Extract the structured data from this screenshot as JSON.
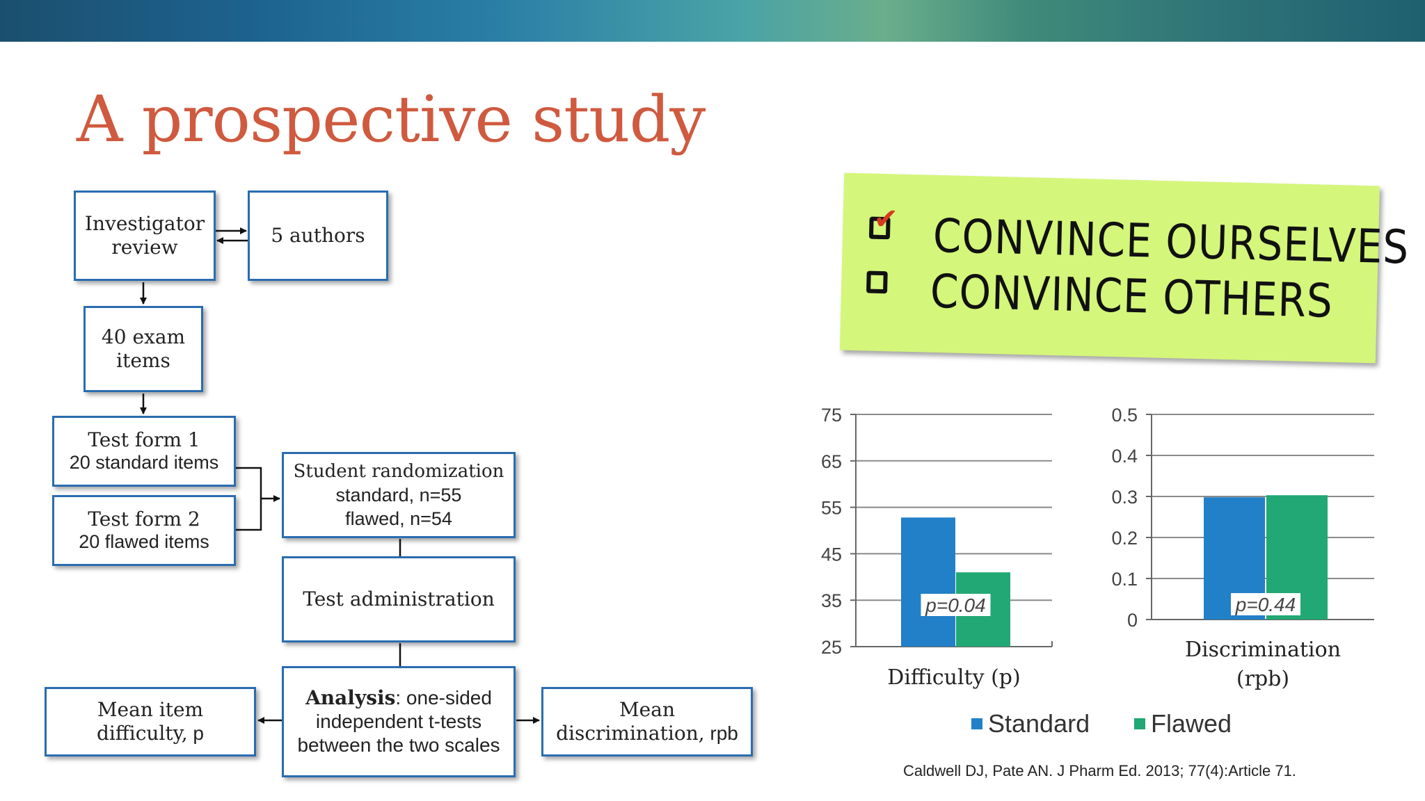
{
  "title": "A prospective study",
  "flow": {
    "investigator": [
      "Investigator",
      "review"
    ],
    "authors": "5 authors",
    "exam_items": [
      "40 exam",
      "items"
    ],
    "form1": {
      "title": "Test form 1",
      "sub": "20 standard items"
    },
    "form2": {
      "title": "Test form 2",
      "sub": "20 flawed items"
    },
    "randomization": {
      "title": "Student randomization",
      "line1": "standard, n=55",
      "line2": "flawed, n=54"
    },
    "administration": "Test administration",
    "analysis": {
      "bold": "Analysis",
      "rest": ": one-sided",
      "line2": "independent t-tests",
      "line3": "between the two scales"
    },
    "mean_difficulty": {
      "line1": "Mean item",
      "line2": "difficulty,",
      "symbol": "p"
    },
    "mean_discrimination": {
      "line1": "Mean",
      "line2": "discrimination,",
      "symbol": "rpb"
    }
  },
  "note": {
    "items": [
      {
        "text": "CONVINCE OURSELVES",
        "checked": true
      },
      {
        "text": "CONVINCE OTHERS",
        "checked": false
      }
    ]
  },
  "chart_data": [
    {
      "type": "bar",
      "categories": [
        "Difficulty (p)"
      ],
      "xlabel": "Difficulty (p)",
      "ylim": [
        25,
        75
      ],
      "yticks": [
        25,
        35,
        45,
        55,
        65,
        75
      ],
      "series": [
        {
          "name": "Standard",
          "values": [
            52.8
          ]
        },
        {
          "name": "Flawed",
          "values": [
            41
          ]
        }
      ],
      "annotation": "p=0.04",
      "grid": true
    },
    {
      "type": "bar",
      "categories": [
        "Discrimination (rpb)"
      ],
      "xlabel": [
        "Discrimination",
        "(rpb)"
      ],
      "ylim": [
        0,
        0.5
      ],
      "yticks": [
        "0",
        "0.1",
        "0.2",
        "0.3",
        "0.4",
        "0.5"
      ],
      "series": [
        {
          "name": "Standard",
          "values": [
            0.298
          ]
        },
        {
          "name": "Flawed",
          "values": [
            0.303
          ]
        }
      ],
      "annotation": "p=0.44",
      "grid": true
    }
  ],
  "legend": [
    {
      "label": "Standard",
      "color": "#2280c8"
    },
    {
      "label": "Flawed",
      "color": "#22a874"
    }
  ],
  "citation": "Caldwell DJ, Pate AN. J Pharm Ed. 2013;  77(4):Article 71."
}
